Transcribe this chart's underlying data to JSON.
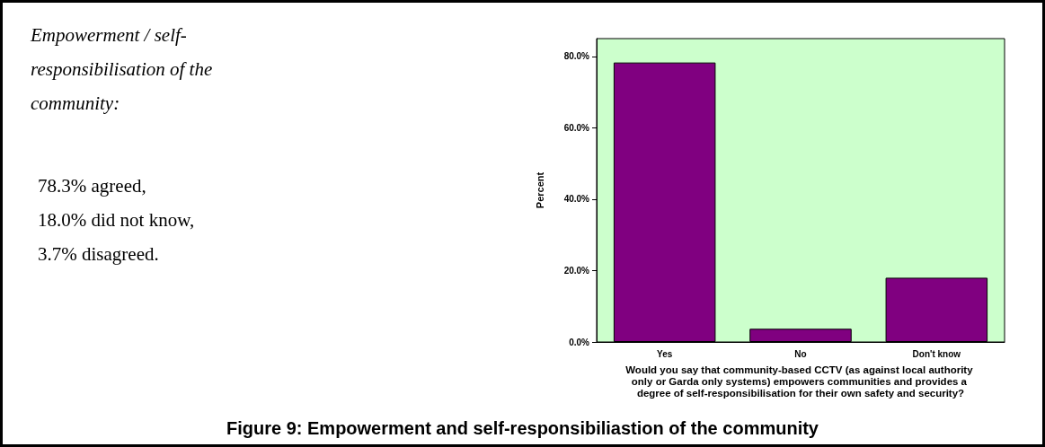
{
  "chart_data": {
    "type": "bar",
    "title": "Figure 9: Empowerment and self-responsibiliastion of the community",
    "xlabel": "Would you say that community-based CCTV (as against local authority only or Garda only systems) empowers communities and provides a degree of self-responsibilisation for their own safety and security?",
    "ylabel": "Percent",
    "categories": [
      "Yes",
      "No",
      "Don't know"
    ],
    "values": [
      78.3,
      3.7,
      18.0
    ],
    "color": "#800080",
    "ylim": [
      0,
      85
    ],
    "yticks": [
      {
        "value": 0,
        "label": "0.0%"
      },
      {
        "value": 20,
        "label": "20.0%"
      },
      {
        "value": 40,
        "label": "40.0%"
      },
      {
        "value": 60,
        "label": "60.0%"
      },
      {
        "value": 80,
        "label": "80.0%"
      }
    ],
    "grid": false,
    "annotations": [
      "Empowerment / self-responsibilisation of the community:",
      "78.3% agreed,",
      "18.0% did not know,",
      "3.7% disagreed."
    ]
  }
}
